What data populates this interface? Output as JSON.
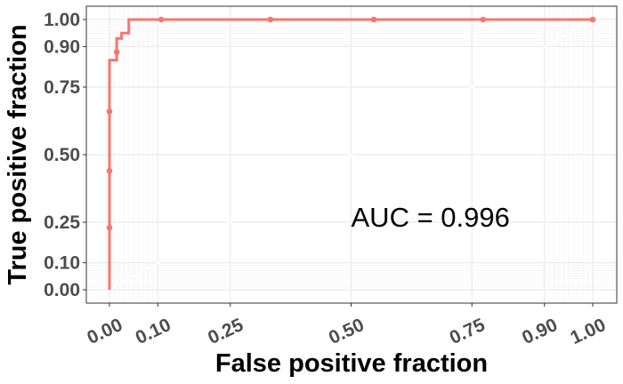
{
  "chart_data": {
    "type": "line",
    "title": "",
    "xlabel": "False positive fraction",
    "ylabel": "True positive fraction",
    "xlim": [
      0,
      1
    ],
    "ylim": [
      0,
      1
    ],
    "x_ticks": [
      0,
      0.1,
      0.25,
      0.5,
      0.75,
      0.9,
      1
    ],
    "x_tick_labels": [
      "0.00",
      "0.10",
      "0.25",
      "0.50",
      "0.75",
      "0.90",
      "1.00"
    ],
    "y_ticks": [
      0,
      0.1,
      0.25,
      0.5,
      0.75,
      0.9,
      1
    ],
    "y_tick_labels": [
      "0.00",
      "0.10",
      "0.25",
      "0.50",
      "0.75",
      "0.90",
      "1.00"
    ],
    "grid": true,
    "minor_grid_x": [
      0.01,
      0.02,
      0.03,
      0.04,
      0.05,
      0.06,
      0.07,
      0.08,
      0.09,
      0.91,
      0.92,
      0.93,
      0.94,
      0.95,
      0.96,
      0.97,
      0.98,
      0.99
    ],
    "minor_grid_y": [
      0.01,
      0.02,
      0.03,
      0.04,
      0.05,
      0.06,
      0.07,
      0.08,
      0.09,
      0.91,
      0.92,
      0.93,
      0.94,
      0.95,
      0.96,
      0.97,
      0.98,
      0.99
    ],
    "reference_line": [
      [
        0,
        0
      ],
      [
        1,
        1
      ]
    ],
    "color": "#f8766d",
    "series": [
      {
        "name": "",
        "curve": [
          [
            0,
            0
          ],
          [
            0,
            0.85
          ],
          [
            0.015,
            0.85
          ],
          [
            0.015,
            0.93
          ],
          [
            0.025,
            0.93
          ],
          [
            0.025,
            0.95
          ],
          [
            0.04,
            0.95
          ],
          [
            0.04,
            1.0
          ],
          [
            1,
            1
          ]
        ],
        "points": [
          [
            0,
            0.23
          ],
          [
            0,
            0.44
          ],
          [
            0,
            0.66
          ],
          [
            0.015,
            0.88
          ],
          [
            0.107,
            1.0
          ],
          [
            0.333,
            1.0
          ],
          [
            0.547,
            1.0
          ],
          [
            0.773,
            1.0
          ],
          [
            1,
            1
          ]
        ]
      }
    ],
    "annotation": {
      "text": "AUC = 0.996",
      "x": 0.5,
      "y": 0.27
    }
  }
}
